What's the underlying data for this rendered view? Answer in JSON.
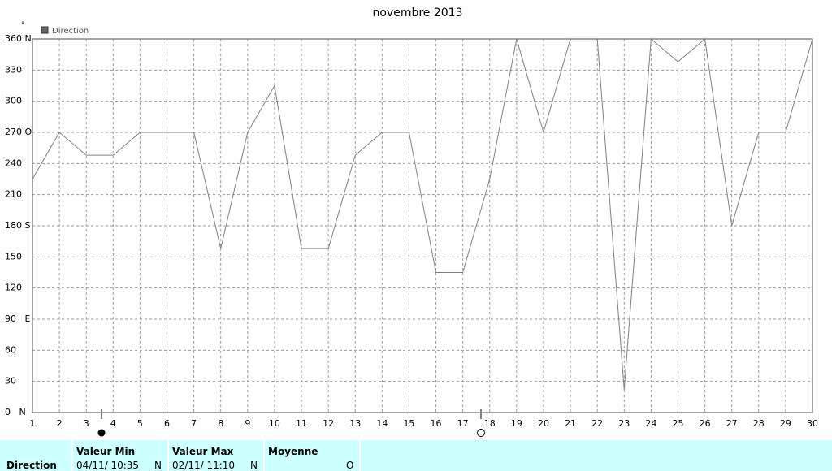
{
  "chart_data": {
    "type": "line",
    "title": "novembre 2013",
    "y_unit": "°",
    "x": [
      1,
      2,
      3,
      4,
      5,
      6,
      7,
      8,
      9,
      10,
      11,
      12,
      13,
      14,
      15,
      16,
      17,
      18,
      19,
      20,
      21,
      22,
      23,
      24,
      25,
      26,
      27,
      28,
      29,
      30
    ],
    "series": [
      {
        "name": "Direction",
        "color": "#808080",
        "values": [
          225,
          270,
          248,
          248,
          270,
          270,
          270,
          158,
          270,
          315,
          158,
          158,
          248,
          270,
          270,
          135,
          135,
          225,
          360,
          270,
          360,
          360,
          22,
          360,
          338,
          360,
          180,
          270,
          270,
          360
        ]
      }
    ],
    "xlim": [
      1,
      30
    ],
    "xticks": [
      1,
      2,
      3,
      4,
      5,
      6,
      7,
      8,
      9,
      10,
      11,
      12,
      13,
      14,
      15,
      16,
      17,
      18,
      19,
      20,
      21,
      22,
      23,
      24,
      25,
      26,
      27,
      28,
      29,
      30
    ],
    "ylim": [
      0,
      360
    ],
    "yticks": [
      {
        "value": 0,
        "label": "0   N"
      },
      30,
      60,
      {
        "value": 90,
        "label": "90   E"
      },
      120,
      150,
      {
        "value": 180,
        "label": "180 S"
      },
      210,
      240,
      {
        "value": 270,
        "label": "270 O"
      },
      300,
      330,
      {
        "value": 360,
        "label": "360 N"
      }
    ],
    "grid": true
  },
  "footer_table": {
    "row_label": "Direction",
    "columns": [
      {
        "header": "Valeur Min",
        "date": "04/11/ 10:35",
        "value": "N"
      },
      {
        "header": "Valeur Max",
        "date": "02/11/ 11:10",
        "value": "N"
      },
      {
        "header": "Moyenne",
        "value": "O"
      }
    ]
  }
}
